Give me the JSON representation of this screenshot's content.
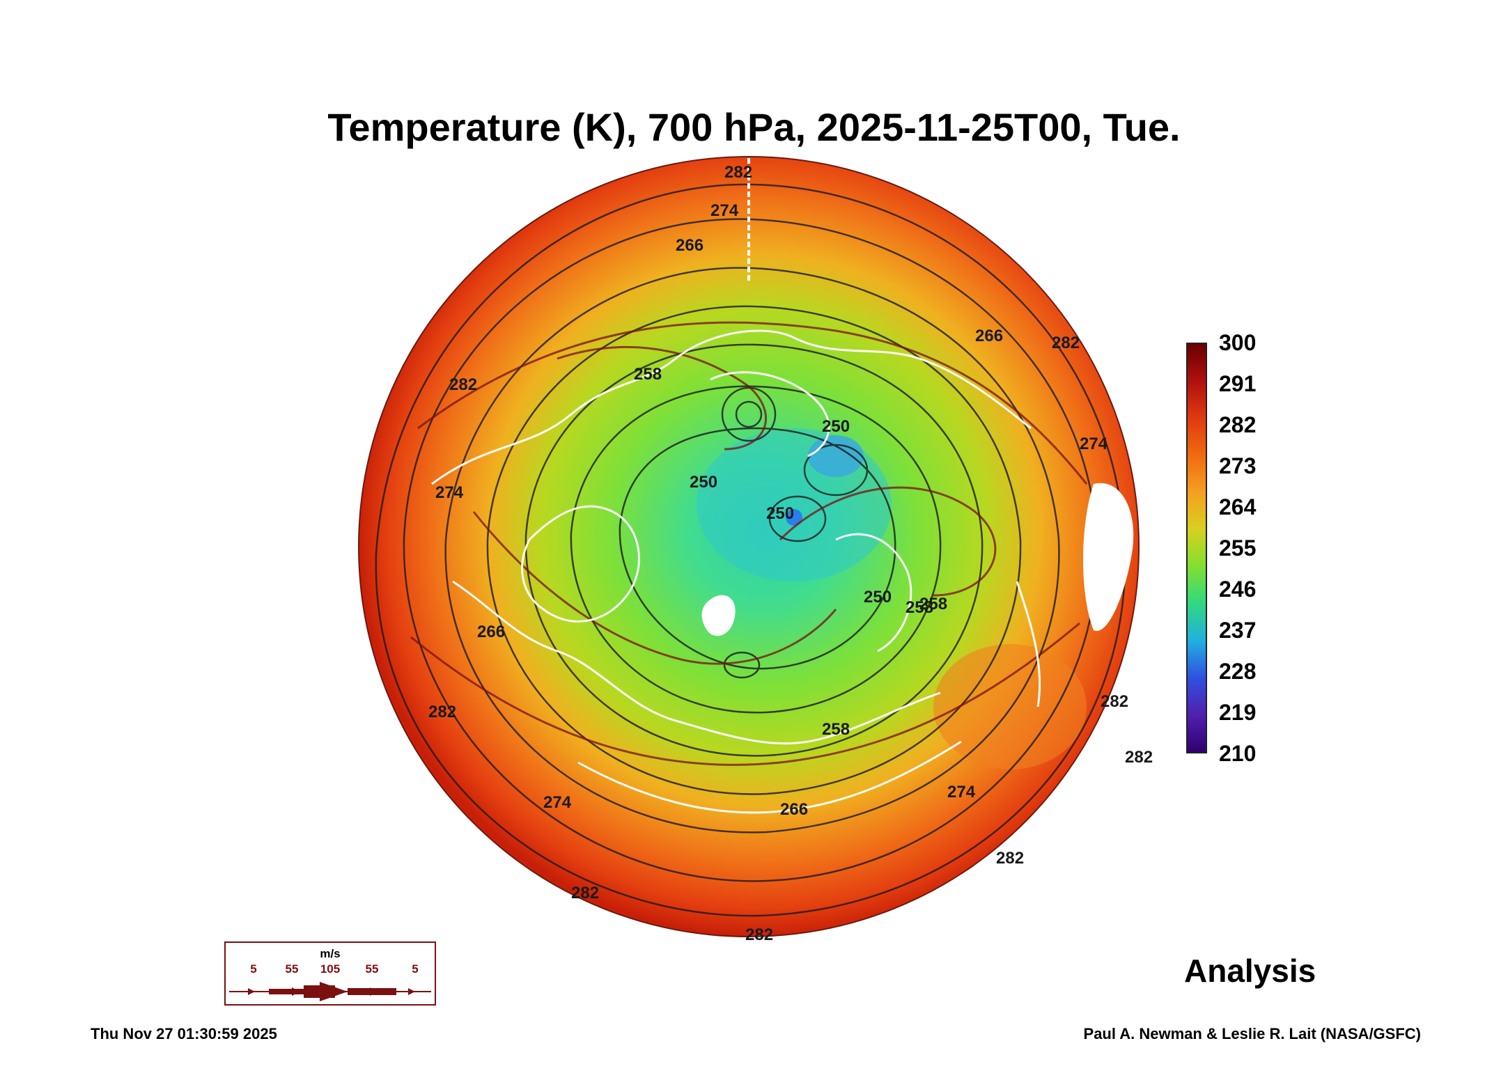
{
  "title": "Temperature (K), 700 hPa, 2025-11-25T00, Tue.",
  "colorbar": {
    "units": "K",
    "labels": [
      "300",
      "291",
      "282",
      "273",
      "264",
      "255",
      "246",
      "237",
      "228",
      "219",
      "210"
    ],
    "stops": [
      "#6a0000",
      "#b01010",
      "#e03a10",
      "#f06a10",
      "#f5a020",
      "#d8d020",
      "#80e030",
      "#30d880",
      "#20b0e0",
      "#3050e0",
      "#5020b0",
      "#300070"
    ]
  },
  "map": {
    "projection": "north polar stereographic",
    "contour_labels": [
      "282",
      "274",
      "266",
      "258",
      "250",
      "258",
      "250",
      "282",
      "274",
      "266",
      "282",
      "258",
      "250",
      "266",
      "274",
      "282",
      "282",
      "282",
      "274",
      "266",
      "258",
      "250",
      "282",
      "274",
      "282",
      "282"
    ]
  },
  "wind_key": {
    "unit": "m/s",
    "values": [
      "5",
      "55",
      "105",
      "55",
      "5"
    ]
  },
  "label_analysis": "Analysis",
  "timestamp": "Thu Nov 27 01:30:59 2025",
  "credit": "Paul A. Newman & Leslie R. Lait (NASA/GSFC)"
}
